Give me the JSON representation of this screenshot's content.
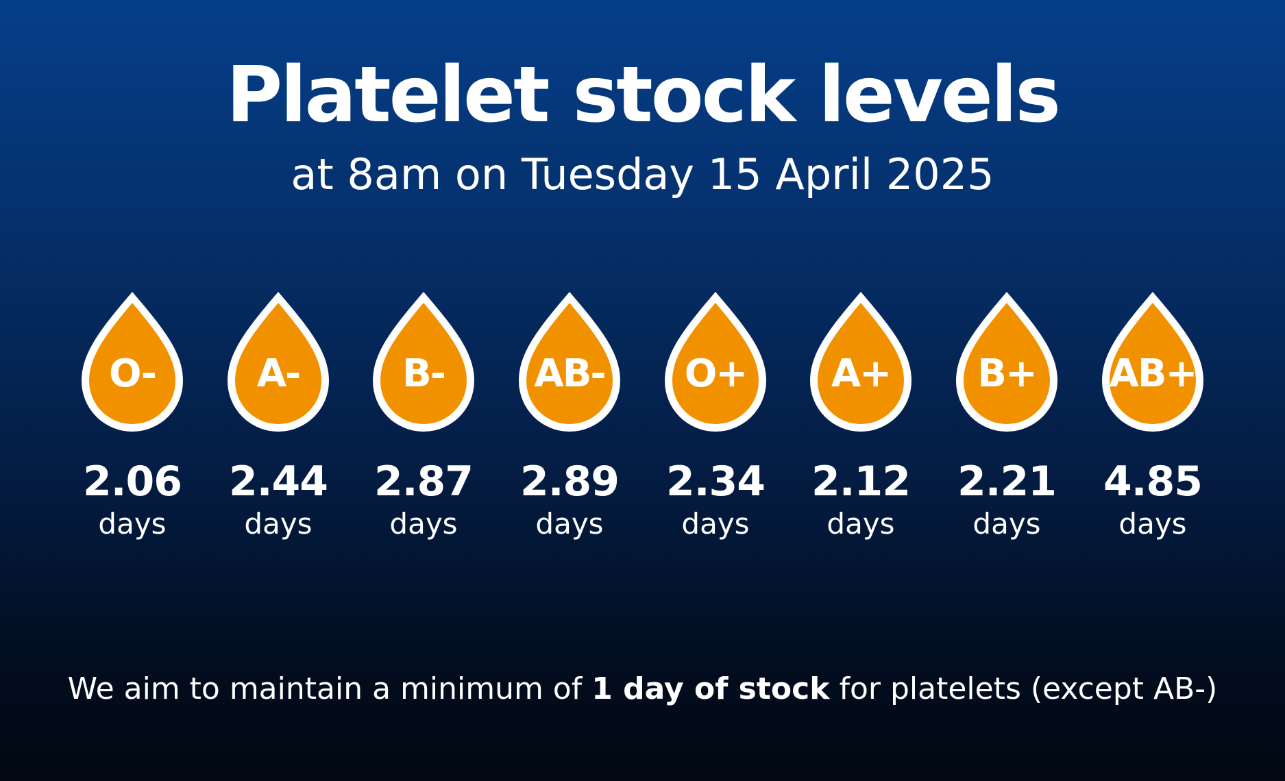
{
  "header": {
    "title": "Platelet stock levels",
    "subtitle": "at 8am on Tuesday 15 April 2025"
  },
  "colors": {
    "drop_fill": "#f29100",
    "drop_outline": "#ffffff",
    "background_top": "#053f89",
    "background_bottom": "#010812"
  },
  "unit": "days",
  "blood_groups": [
    {
      "group": "O-",
      "days": "2.06"
    },
    {
      "group": "A-",
      "days": "2.44"
    },
    {
      "group": "B-",
      "days": "2.87"
    },
    {
      "group": "AB-",
      "days": "2.89"
    },
    {
      "group": "O+",
      "days": "2.34"
    },
    {
      "group": "A+",
      "days": "2.12"
    },
    {
      "group": "B+",
      "days": "2.21"
    },
    {
      "group": "AB+",
      "days": "4.85"
    }
  ],
  "footnote": {
    "before": "We aim to maintain a minimum of ",
    "bold": "1 day of stock",
    "after": " for platelets (except AB-)"
  }
}
